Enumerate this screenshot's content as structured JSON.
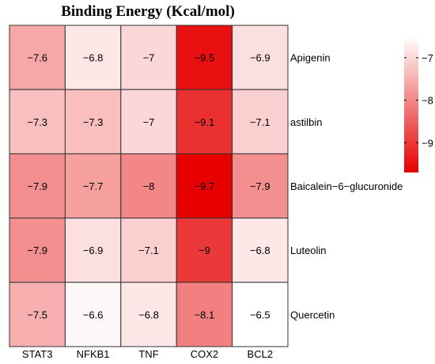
{
  "chart_data": {
    "type": "heatmap",
    "title": "Binding Energy (Kcal/mol)",
    "columns": [
      "STAT3",
      "NFKB1",
      "TNF",
      "COX2",
      "BCL2"
    ],
    "rows": [
      "Apigenin",
      "astilbin",
      "Baicalein−6−glucuronide",
      "Luteolin",
      "Quercetin"
    ],
    "values": [
      [
        -7.6,
        -6.8,
        -7.0,
        -9.5,
        -6.9
      ],
      [
        -7.3,
        -7.3,
        -7.0,
        -9.1,
        -7.1
      ],
      [
        -7.9,
        -7.7,
        -8.0,
        -9.7,
        -7.9
      ],
      [
        -7.9,
        -6.9,
        -7.1,
        -9.0,
        -6.8
      ],
      [
        -7.5,
        -6.6,
        -6.8,
        -8.1,
        -6.5
      ]
    ],
    "cell_labels": [
      [
        "−7.6",
        "−6.8",
        "−7",
        "−9.5",
        "−6.9"
      ],
      [
        "−7.3",
        "−7.3",
        "−7",
        "−9.1",
        "−7.1"
      ],
      [
        "−7.9",
        "−7.7",
        "−8",
        "−9.7",
        "−7.9"
      ],
      [
        "−7.9",
        "−6.9",
        "−7.1",
        "−9",
        "−6.8"
      ],
      [
        "−7.5",
        "−6.6",
        "−6.8",
        "−8.1",
        "−6.5"
      ]
    ],
    "color_scale": {
      "min": -9.7,
      "max": -6.5,
      "low_color": "#e60000",
      "high_color": "#ffffff",
      "ticks": [
        "−7",
        "−8",
        "−9"
      ],
      "tick_values": [
        -7,
        -8,
        -9
      ],
      "legend_placement": "right"
    },
    "grid": true
  }
}
